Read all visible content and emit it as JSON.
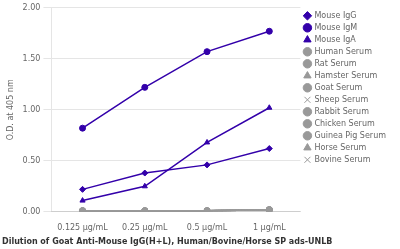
{
  "chart_data": {
    "type": "line",
    "categories": [
      "0.125 μg/mL",
      "0.25 μg/mL",
      "0.5 μg/mL",
      "1 μg/mL"
    ],
    "series": [
      {
        "name": "Mouse IgG",
        "color": "#3300aa",
        "marker": "diamond",
        "values": [
          0.22,
          0.38,
          0.46,
          0.62
        ]
      },
      {
        "name": "Mouse IgM",
        "color": "#3300aa",
        "marker": "circle",
        "values": [
          0.82,
          1.22,
          1.57,
          1.77
        ]
      },
      {
        "name": "Mouse IgA",
        "color": "#3300aa",
        "marker": "triangle",
        "values": [
          0.11,
          0.25,
          0.68,
          1.02
        ]
      },
      {
        "name": "Human Serum",
        "color": "#999999",
        "marker": "circle",
        "values": [
          0.01,
          0.01,
          0.01,
          0.02
        ]
      },
      {
        "name": "Rat Serum",
        "color": "#999999",
        "marker": "circle",
        "values": [
          0.01,
          0.01,
          0.01,
          0.02
        ]
      },
      {
        "name": "Hamster Serum",
        "color": "#999999",
        "marker": "triangle",
        "values": [
          0.01,
          0.01,
          0.01,
          0.02
        ]
      },
      {
        "name": "Goat Serum",
        "color": "#999999",
        "marker": "circle",
        "values": [
          0.01,
          0.01,
          0.01,
          0.02
        ]
      },
      {
        "name": "Sheep Serum",
        "color": "#999999",
        "marker": "x",
        "values": [
          0.01,
          0.01,
          0.01,
          0.02
        ]
      },
      {
        "name": "Rabbit Serum",
        "color": "#999999",
        "marker": "circle",
        "values": [
          0.01,
          0.01,
          0.01,
          0.02
        ]
      },
      {
        "name": "Chicken Serum",
        "color": "#999999",
        "marker": "circle",
        "values": [
          0.01,
          0.01,
          0.01,
          0.02
        ]
      },
      {
        "name": "Guinea Pig Serum",
        "color": "#999999",
        "marker": "circle",
        "values": [
          0.01,
          0.01,
          0.01,
          0.02
        ]
      },
      {
        "name": "Horse Serum",
        "color": "#999999",
        "marker": "triangle",
        "values": [
          0.01,
          0.01,
          0.01,
          0.02
        ]
      },
      {
        "name": "Bovine Serum",
        "color": "#999999",
        "marker": "x",
        "values": [
          0.01,
          0.01,
          0.01,
          0.02
        ]
      }
    ],
    "ylabel": "O.D. at 405 nm",
    "xlabel": "Dilution of Goat Anti-Mouse IgG(H+L), Human/Bovine/Horse SP ads-UNLB",
    "ylim": [
      0.0,
      2.0
    ],
    "yticks": [
      {
        "value": 0.0,
        "label": "0.00"
      },
      {
        "value": 0.5,
        "label": "0.50"
      },
      {
        "value": 1.0,
        "label": "1.00"
      },
      {
        "value": 1.5,
        "label": "1.50"
      },
      {
        "value": 2.0,
        "label": "2.00"
      }
    ],
    "grid": "y",
    "legend": "right"
  }
}
